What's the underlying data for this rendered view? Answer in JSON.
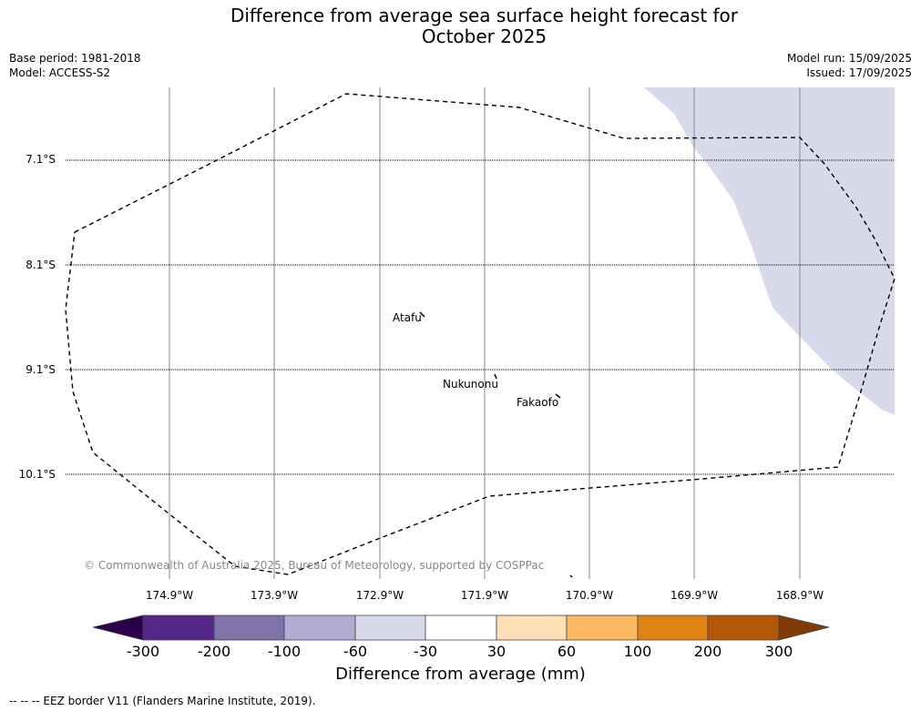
{
  "title_line1": "Difference from average sea surface height forecast for",
  "title_line2": "October 2025",
  "meta": {
    "base_period": "Base period: 1981-2018",
    "model": "Model: ACCESS-S2",
    "model_run": "Model run: 15/09/2025",
    "issued": "Issued: 17/09/2025"
  },
  "lat_labels": [
    "7.1°S",
    "8.1°S",
    "9.1°S",
    "10.1°S"
  ],
  "lon_labels": [
    "174.9°W",
    "173.9°W",
    "172.9°W",
    "171.9°W",
    "170.9°W",
    "169.9°W",
    "168.9°W"
  ],
  "islands": [
    "Atafu",
    "Nukunonu",
    "Fakaofo"
  ],
  "copyright": "© Commonwealth of Australia 2025, Bureau of Meteorology, supported by COSPPac",
  "colorbar": {
    "title": "Difference from average (mm)",
    "tick_labels": [
      "-300",
      "-200",
      "-100",
      "-60",
      "-30",
      "30",
      "60",
      "100",
      "200",
      "300"
    ],
    "colors": [
      "#2d004b",
      "#542788",
      "#8073ac",
      "#b2abd2",
      "#d8daeb",
      "#ffffff",
      "#fee0b6",
      "#fdb863",
      "#e08214",
      "#b35806",
      "#7f3b08"
    ]
  },
  "anomaly_fill_color": "#d8daeb",
  "footnote": "--  --  -- EEZ border V11 (Flanders Marine Institute, 2019)."
}
